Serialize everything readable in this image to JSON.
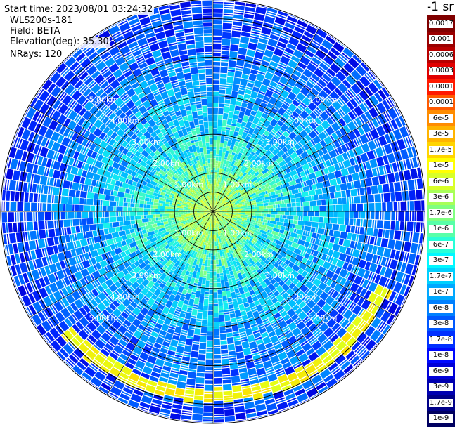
{
  "info": {
    "start_time": "Start time: 2023/08/01 03:24:32",
    "instrument": "WLS200s-181",
    "field": "Field: BETA",
    "elevation": "Elevation(deg): 35.30",
    "nrays": "NRays: 120"
  },
  "colorbar": {
    "units": "-1 sr",
    "labels": [
      "0.0017",
      "0.001",
      "0.0006",
      "0.0003",
      "0.00017",
      "0.0001",
      "6e-5",
      "3e-5",
      "1.7e-5",
      "1e-5",
      "6e-6",
      "3e-6",
      "1.7e-6",
      "1e-6",
      "6e-7",
      "3e-7",
      "1.7e-7",
      "1e-7",
      "6e-8",
      "3e-8",
      "1.7e-8",
      "1e-8",
      "6e-9",
      "3e-9",
      "1.7e-9",
      "1e-9"
    ],
    "colors": [
      "#800000",
      "#9a0000",
      "#b80000",
      "#e00000",
      "#ff1a00",
      "#ff5a00",
      "#ff8c00",
      "#ffb400",
      "#ffd400",
      "#ffff00",
      "#d8ff28",
      "#a8ff58",
      "#80ff80",
      "#58ffa8",
      "#28ffd8",
      "#00f8ff",
      "#00d0ff",
      "#00a8ff",
      "#0080ff",
      "#0058ff",
      "#0030ff",
      "#0008ff",
      "#0000d8",
      "#0000b0",
      "#000088",
      "#000060"
    ]
  },
  "chart_data": {
    "type": "polar_ppi",
    "field": "BETA",
    "range_km_max": 5.5,
    "rays": 120,
    "range_rings_km": [
      0.5,
      1.0,
      2.0,
      3.0,
      4.0,
      5.0
    ],
    "ring_labels": [
      "1.00km",
      "2.00km",
      "3.00km",
      "4.00km",
      "5.00km"
    ],
    "azimuth_spokes_deg": [
      0,
      30,
      60,
      90,
      120,
      150,
      180,
      210,
      240,
      270,
      300,
      330
    ],
    "features": [
      {
        "description": "enhanced backscatter arc",
        "range_km": [
          4.3,
          5.4
        ],
        "azimuth_deg": [
          115,
          230
        ],
        "level": "1e-5"
      },
      {
        "description": "near-range higher values",
        "range_km": [
          0,
          2.0
        ],
        "level": "1.7e-7 to 1e-6"
      },
      {
        "description": "background far range",
        "range_km": [
          2.0,
          5.5
        ],
        "level": "1e-8 to 1e-7"
      }
    ]
  }
}
